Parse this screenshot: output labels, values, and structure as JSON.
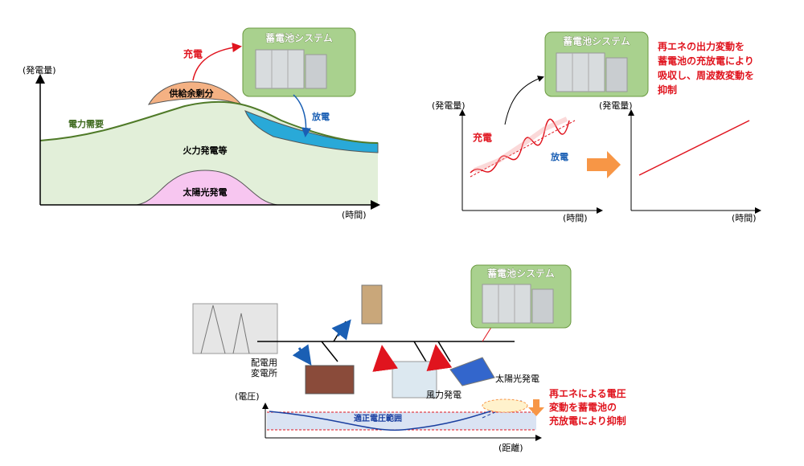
{
  "panel1": {
    "y_axis_label": "(発電量)",
    "x_axis_label": "(時間)",
    "charge_label": "充電",
    "battery_title": "蓄電池システム",
    "surplus_label": "供給余剰分",
    "demand_label": "電力需要",
    "discharge_label": "放電",
    "thermal_label": "火力発電等",
    "solar_label": "太陽光発電"
  },
  "panel2": {
    "battery_title": "蓄電池システム",
    "note_lines": [
      "再エネの出力変動を",
      "蓄電池の充放電により",
      "吸収し、周波数変動を",
      "抑制"
    ],
    "left_y_axis_label": "(発電量)",
    "right_y_axis_label": "(発電量)",
    "charge_label": "充電",
    "discharge_label": "放電",
    "left_x_axis_label": "(時間)",
    "right_x_axis_label": "(時間)"
  },
  "panel3": {
    "battery_title": "蓄電池システム",
    "substation_lines": [
      "配電用",
      "変電所"
    ],
    "wind_label": "風力発電",
    "solar_label": "太陽光発電",
    "y_axis_label": "(電圧)",
    "band_label": "適正電圧範囲",
    "x_axis_label": "(距離)",
    "note_lines": [
      "再エネによる電圧",
      "変動を蓄電池の",
      "充放電により抑制"
    ]
  }
}
